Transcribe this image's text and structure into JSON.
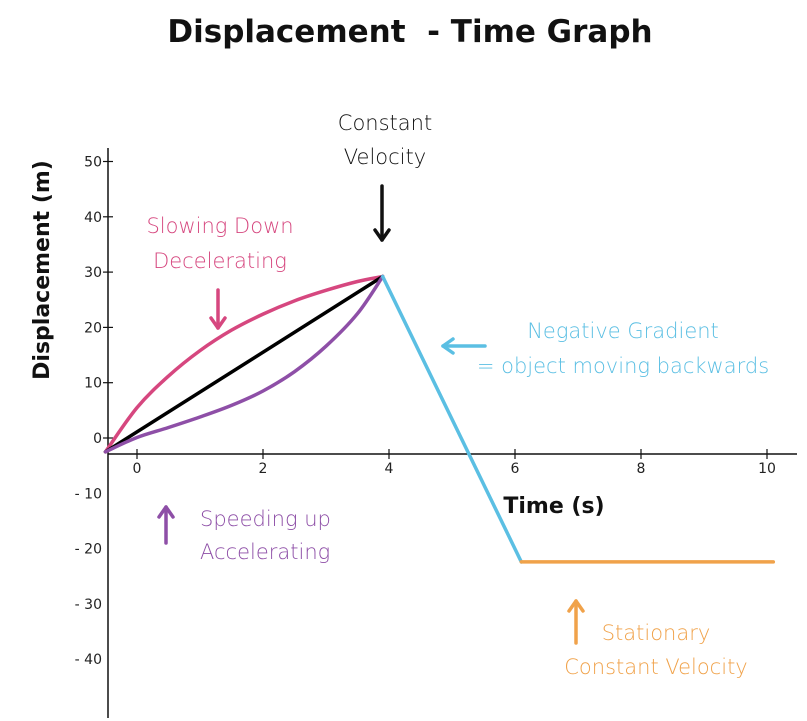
{
  "chart_data": {
    "type": "line",
    "title": "Displacement  - Time Graph",
    "xlabel": "Time (s)",
    "ylabel": "Displacement (m)",
    "xlim": [
      -0.5,
      10.5
    ],
    "ylim": [
      -50,
      50
    ],
    "xticks": [
      0,
      2,
      4,
      6,
      8,
      10
    ],
    "xtick_labels": [
      "0",
      "2",
      "4",
      "6",
      "8",
      "10"
    ],
    "yticks": [
      50,
      40,
      30,
      20,
      10,
      0,
      -10,
      -20,
      -30,
      -40
    ],
    "ytick_labels": [
      "50",
      "40",
      "30",
      "20",
      "10",
      "0",
      "- 10",
      "- 20",
      "- 30",
      "- 40"
    ],
    "grid": false,
    "series": [
      {
        "name": "Slowing Down Decelerating",
        "color": "#d6477f",
        "points": [
          [
            -0.5,
            -2.5
          ],
          [
            0,
            5.5
          ],
          [
            0.5,
            11.2
          ],
          [
            1,
            15.8
          ],
          [
            1.5,
            19.5
          ],
          [
            2,
            22.4
          ],
          [
            2.5,
            24.8
          ],
          [
            3,
            26.7
          ],
          [
            3.5,
            28.3
          ],
          [
            3.9,
            29.2
          ]
        ]
      },
      {
        "name": "Constant Velocity",
        "color": "#000000",
        "points": [
          [
            -0.5,
            -2.5
          ],
          [
            3.9,
            29.2
          ]
        ]
      },
      {
        "name": "Speeding up Accelerating",
        "color": "#8e4fa7",
        "points": [
          [
            -0.5,
            -2.5
          ],
          [
            0,
            0.1
          ],
          [
            0.5,
            1.9
          ],
          [
            1,
            3.8
          ],
          [
            1.5,
            5.9
          ],
          [
            2,
            8.5
          ],
          [
            2.5,
            12
          ],
          [
            3,
            16.6
          ],
          [
            3.5,
            22.5
          ],
          [
            3.9,
            29.2
          ]
        ]
      },
      {
        "name": "Negative Gradient",
        "color": "#5bbfe3",
        "points": [
          [
            3.9,
            29.2
          ],
          [
            6.1,
            -22.4
          ]
        ]
      },
      {
        "name": "Stationary",
        "color": "#f0a24a",
        "points": [
          [
            6.1,
            -22.4
          ],
          [
            10.1,
            -22.4
          ]
        ]
      }
    ],
    "annotations": [
      {
        "lines": [
          "Constant",
          "Velocity"
        ],
        "color": "#111111",
        "arrow": "down"
      },
      {
        "lines": [
          "Slowing Down",
          "Decelerating"
        ],
        "color": "#d6477f",
        "arrow": "down"
      },
      {
        "lines": [
          "Negative Gradient",
          "= object moving backwards"
        ],
        "color": "#5bbfe3",
        "arrow": "left"
      },
      {
        "lines": [
          "Speeding up",
          "Accelerating"
        ],
        "color": "#8e4fa7",
        "arrow": "up"
      },
      {
        "lines": [
          "Stationary",
          "Constant Velocity"
        ],
        "color": "#f0a24a",
        "arrow": "up"
      }
    ]
  }
}
